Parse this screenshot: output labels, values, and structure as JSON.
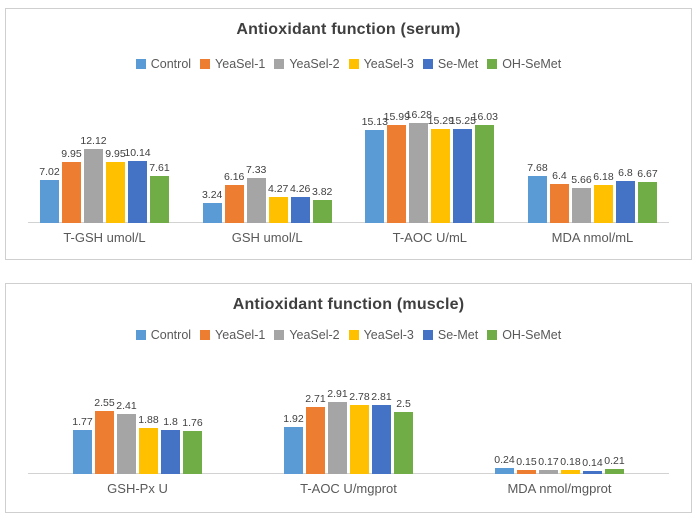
{
  "theme": {
    "series_colors": [
      "#5B9BD5",
      "#ED7D31",
      "#A5A5A5",
      "#FFC000",
      "#4472C4",
      "#70AD47"
    ],
    "title_color": "#3f3f3f",
    "data_label_color": "#404040",
    "category_label_color": "#595959",
    "legend_label_color": "#595959",
    "axis_line_color": "#d2d2d2",
    "panel_border_color": "#cfcfcf"
  },
  "chart_data": [
    {
      "type": "bar",
      "title": "Antioxidant function (serum)",
      "xlabel": "",
      "ylabel": "",
      "ylim": [
        0,
        17
      ],
      "grid": false,
      "legend_position": "top",
      "categories": [
        "T-GSH umol/L",
        "GSH umol/L",
        "T-AOC U/mL",
        "MDA nmol/mL"
      ],
      "series": [
        {
          "name": "Control",
          "values": [
            7.02,
            3.24,
            15.13,
            7.68
          ]
        },
        {
          "name": "YeaSel-1",
          "values": [
            9.95,
            6.16,
            15.99,
            6.4
          ]
        },
        {
          "name": "YeaSel-2",
          "values": [
            12.12,
            7.33,
            16.28,
            5.66
          ]
        },
        {
          "name": "YeaSel-3",
          "values": [
            9.95,
            4.27,
            15.29,
            6.18
          ]
        },
        {
          "name": "Se-Met",
          "values": [
            10.14,
            4.26,
            15.25,
            6.8
          ]
        },
        {
          "name": "OH-SeMet",
          "values": [
            7.61,
            3.82,
            16.03,
            6.67
          ]
        }
      ]
    },
    {
      "type": "bar",
      "title": "Antioxidant function (muscle)",
      "xlabel": "",
      "ylabel": "",
      "ylim": [
        0,
        3
      ],
      "grid": false,
      "legend_position": "top",
      "categories": [
        "GSH-Px U",
        "T-AOC U/mgprot",
        "MDA nmol/mgprot"
      ],
      "series": [
        {
          "name": "Control",
          "values": [
            1.77,
            1.92,
            0.24
          ]
        },
        {
          "name": "YeaSel-1",
          "values": [
            2.55,
            2.71,
            0.15
          ]
        },
        {
          "name": "YeaSel-2",
          "values": [
            2.41,
            2.91,
            0.17
          ]
        },
        {
          "name": "YeaSel-3",
          "values": [
            1.88,
            2.78,
            0.18
          ]
        },
        {
          "name": "Se-Met",
          "values": [
            1.8,
            2.81,
            0.14
          ]
        },
        {
          "name": "OH-SeMet",
          "values": [
            1.76,
            2.5,
            0.21
          ]
        }
      ]
    }
  ]
}
